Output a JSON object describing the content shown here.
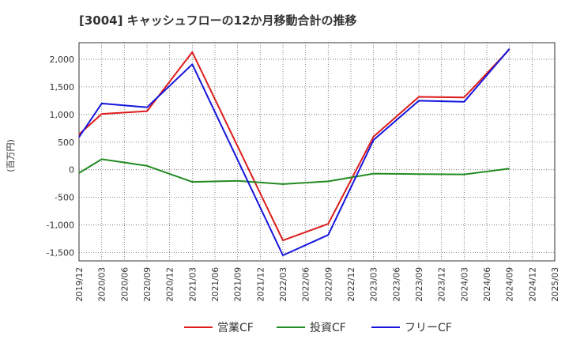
{
  "chart_data": {
    "type": "line",
    "title": "[3004]  キャッシュフローの12か月移動合計の推移",
    "xlabel": "",
    "ylabel": "(百万円)",
    "ylim": [
      -1650,
      2300
    ],
    "yticks": [
      -1500,
      -1000,
      -500,
      0,
      500,
      1000,
      1500,
      2000
    ],
    "ytick_labels": [
      "-1,500",
      "-1,000",
      "-500",
      "0",
      "500",
      "1,000",
      "1,500",
      "2,000"
    ],
    "categories": [
      "2019/12",
      "2020/03",
      "2020/06",
      "2020/09",
      "2020/12",
      "2021/03",
      "2021/06",
      "2021/09",
      "2021/12",
      "2022/03",
      "2022/06",
      "2022/09",
      "2022/12",
      "2023/03",
      "2023/06",
      "2023/09",
      "2023/12",
      "2024/03",
      "2024/06",
      "2024/09",
      "2024/12",
      "2025/03"
    ],
    "grid": true,
    "legend_position": "bottom",
    "series": [
      {
        "name": "営業CF",
        "color": "#dd1c1c",
        "values": [
          640,
          1010,
          null,
          1060,
          null,
          2130,
          null,
          null,
          null,
          -1280,
          null,
          -980,
          null,
          600,
          null,
          1320,
          null,
          1310,
          null,
          2180,
          null,
          null
        ]
      },
      {
        "name": "投資CF",
        "color": "#228b22",
        "values": [
          -60,
          190,
          null,
          70,
          null,
          -220,
          null,
          -200,
          null,
          -260,
          null,
          -210,
          null,
          -70,
          null,
          -80,
          null,
          -85,
          null,
          20,
          null,
          null
        ]
      },
      {
        "name": "フリーCF",
        "color": "#1515dd",
        "values": [
          590,
          1200,
          null,
          1130,
          null,
          1910,
          null,
          null,
          null,
          -1550,
          null,
          -1180,
          null,
          540,
          null,
          1250,
          null,
          1230,
          null,
          2190,
          null,
          null
        ]
      }
    ]
  }
}
